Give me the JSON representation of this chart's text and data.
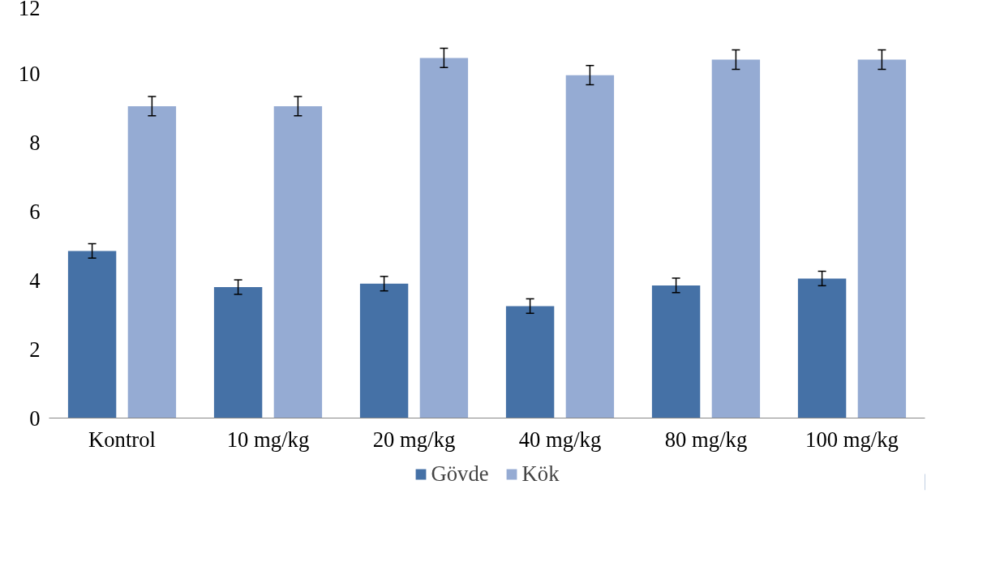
{
  "chart_data": {
    "type": "bar",
    "categories": [
      "Kontrol",
      "10 mg/kg",
      "20 mg/kg",
      "40 mg/kg",
      "80 mg/kg",
      "100 mg/kg"
    ],
    "series": [
      {
        "name": "Gövde",
        "color": "#4571a6",
        "values": [
          4.85,
          3.8,
          3.9,
          3.25,
          3.85,
          4.05
        ],
        "errors": [
          0.21,
          0.21,
          0.21,
          0.21,
          0.21,
          0.21
        ]
      },
      {
        "name": "Kök",
        "color": "#95abd3",
        "values": [
          9.05,
          9.05,
          10.45,
          9.95,
          10.4,
          10.4
        ],
        "errors": [
          0.28,
          0.28,
          0.28,
          0.28,
          0.28,
          0.28
        ]
      }
    ],
    "ylim": [
      0,
      12
    ],
    "yticks": [
      0,
      2,
      4,
      6,
      8,
      10,
      12
    ],
    "grid": false,
    "legend": "bottom"
  }
}
